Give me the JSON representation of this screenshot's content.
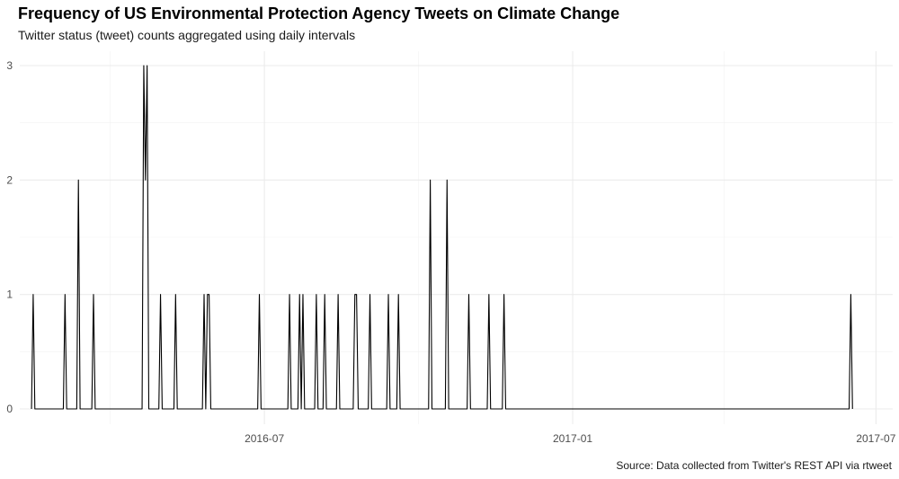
{
  "chart_data": {
    "type": "line",
    "title": "Frequency of US Environmental Protection Agency Tweets on Climate Change",
    "subtitle": "Twitter status (tweet) counts aggregated using daily intervals",
    "caption": "Source: Data collected from Twitter's REST API via rtweet",
    "xlabel": "",
    "ylabel": "",
    "x_range": [
      "2016-02-06",
      "2017-07-11"
    ],
    "ylim": [
      0,
      3
    ],
    "y_ticks": [
      0,
      1,
      2,
      3
    ],
    "x_ticks": [
      {
        "date": "2016-07-01",
        "label": "2016-07"
      },
      {
        "date": "2017-01-01",
        "label": "2017-01"
      },
      {
        "date": "2017-07-01",
        "label": "2017-07"
      }
    ],
    "grid": true,
    "legend": "none",
    "line_color": "#000000",
    "series": [
      {
        "points": [
          {
            "x": "2016-02-14",
            "y": 1
          },
          {
            "x": "2016-03-04",
            "y": 1
          },
          {
            "x": "2016-03-12",
            "y": 2
          },
          {
            "x": "2016-03-21",
            "y": 1
          },
          {
            "x": "2016-04-20",
            "y": 3
          },
          {
            "x": "2016-04-21",
            "y": 2
          },
          {
            "x": "2016-04-22",
            "y": 3
          },
          {
            "x": "2016-04-30",
            "y": 1
          },
          {
            "x": "2016-05-09",
            "y": 1
          },
          {
            "x": "2016-05-26",
            "y": 1
          },
          {
            "x": "2016-05-28",
            "y": 1
          },
          {
            "x": "2016-05-29",
            "y": 1
          },
          {
            "x": "2016-06-28",
            "y": 1
          },
          {
            "x": "2016-07-16",
            "y": 1
          },
          {
            "x": "2016-07-22",
            "y": 1
          },
          {
            "x": "2016-07-24",
            "y": 1
          },
          {
            "x": "2016-08-01",
            "y": 1
          },
          {
            "x": "2016-08-06",
            "y": 1
          },
          {
            "x": "2016-08-14",
            "y": 1
          },
          {
            "x": "2016-08-24",
            "y": 1
          },
          {
            "x": "2016-08-25",
            "y": 1
          },
          {
            "x": "2016-09-02",
            "y": 1
          },
          {
            "x": "2016-09-13",
            "y": 1
          },
          {
            "x": "2016-09-19",
            "y": 1
          },
          {
            "x": "2016-10-08",
            "y": 2
          },
          {
            "x": "2016-10-18",
            "y": 2
          },
          {
            "x": "2016-10-31",
            "y": 1
          },
          {
            "x": "2016-11-12",
            "y": 1
          },
          {
            "x": "2016-11-21",
            "y": 1
          },
          {
            "x": "2017-06-16",
            "y": 1
          }
        ]
      }
    ]
  }
}
